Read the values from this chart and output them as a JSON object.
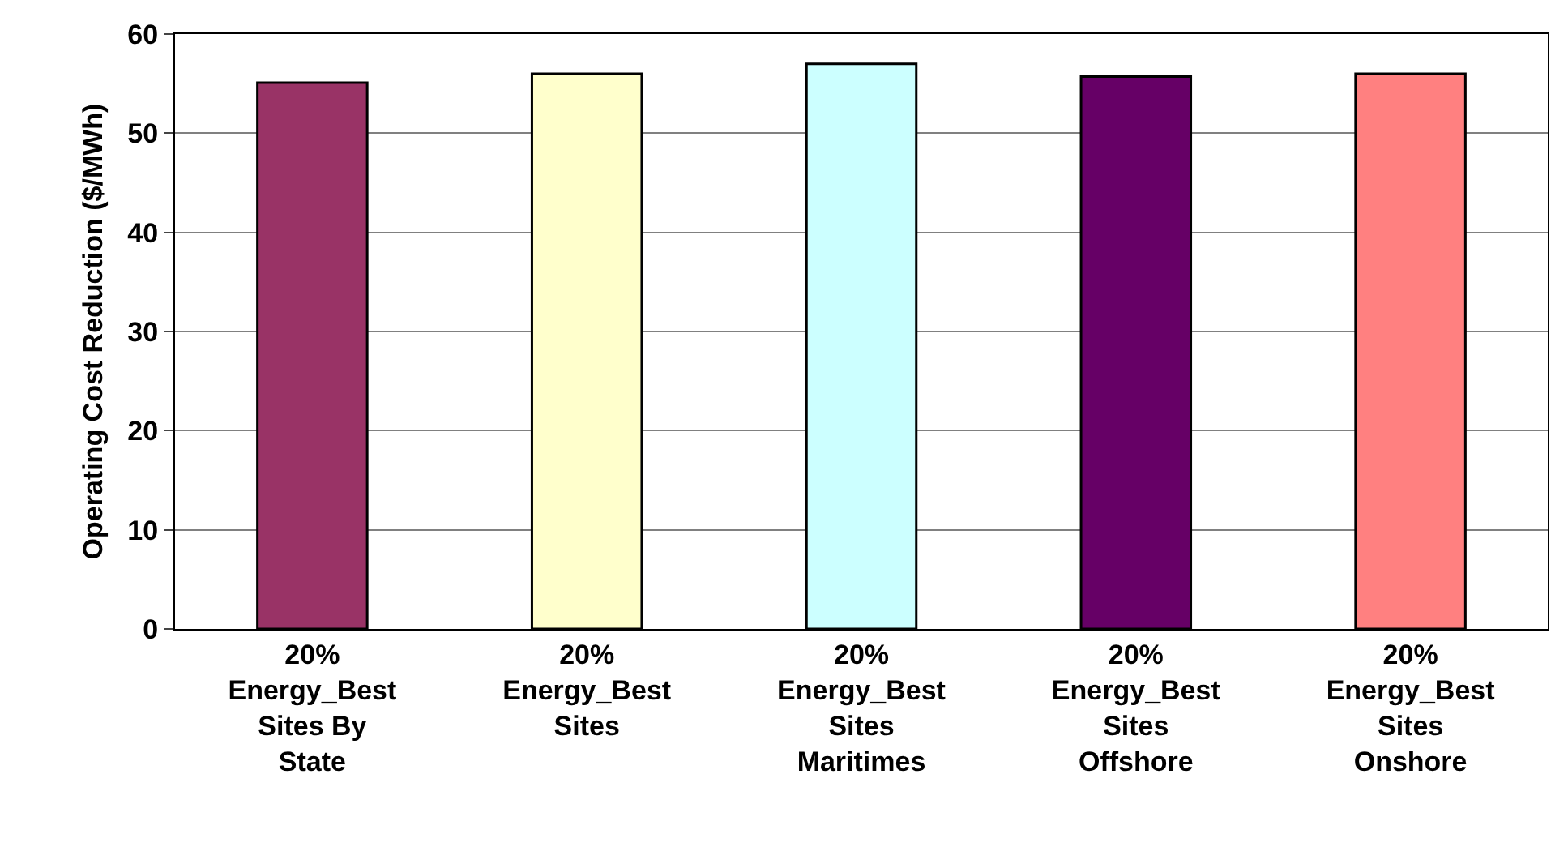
{
  "chart_data": {
    "type": "bar",
    "ylabel": "Operating Cost Reduction ($/MWh)",
    "categories": [
      "20% Energy_Best Sites By State",
      "20% Energy_Best Sites",
      "20% Energy_Best Sites Maritimes",
      "20% Energy_Best Sites Offshore",
      "20% Energy_Best Sites Onshore"
    ],
    "values": [
      55.1,
      56.0,
      57.0,
      55.7,
      56.0
    ],
    "colors": [
      "#993366",
      "#ffffcc",
      "#ccffff",
      "#660066",
      "#ff8080"
    ],
    "ylim": [
      0,
      60
    ],
    "yticks": [
      0,
      10,
      20,
      30,
      40,
      50,
      60
    ],
    "grid": "y"
  }
}
